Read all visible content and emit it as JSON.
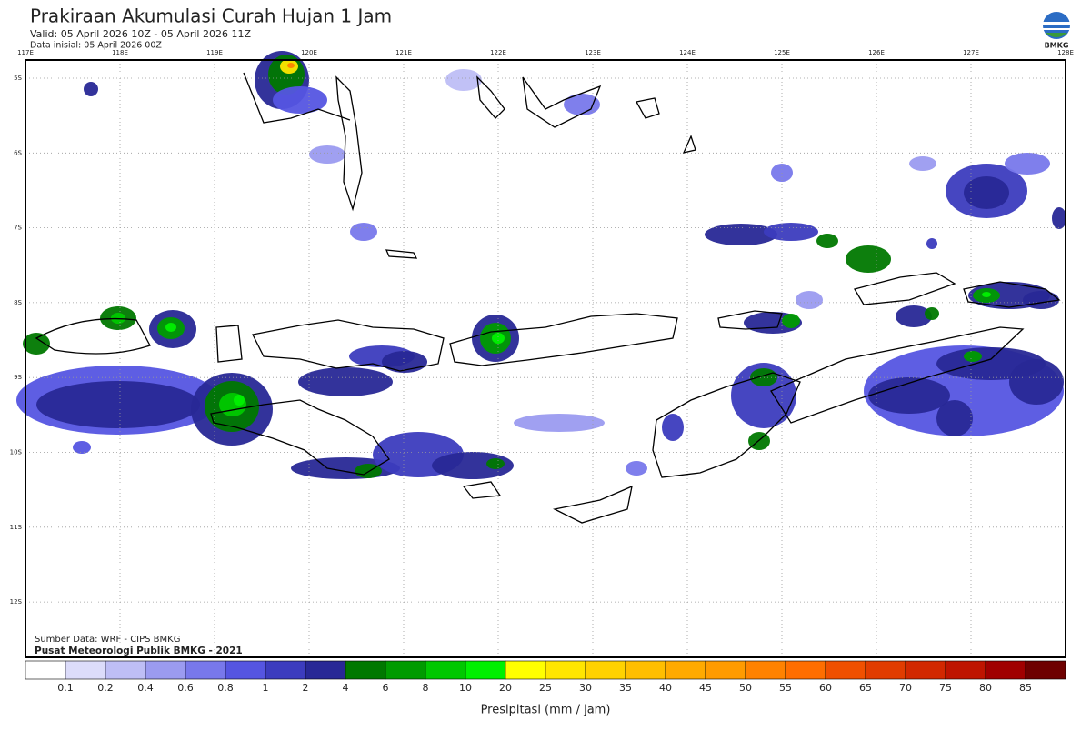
{
  "header": {
    "title": "Prakiraan Akumulasi Curah Hujan 1 Jam",
    "valid": "Valid: 05 April 2026 10Z - 05 April 2026 11Z",
    "initial": "Data inisial: 05 April 2026 00Z",
    "logo": "BMKG"
  },
  "map": {
    "x_labels": [
      "117E",
      "118E",
      "119E",
      "120E",
      "121E",
      "122E",
      "123E",
      "124E",
      "125E",
      "126E",
      "127E",
      "128E"
    ],
    "y_labels": [
      "5S",
      "6S",
      "7S",
      "8S",
      "9S",
      "10S",
      "11S",
      "12S"
    ],
    "source": "Sumber Data: WRF - CIPS BMKG",
    "credit": "Pusat Meteorologi Publik BMKG - 2021"
  },
  "colorbar": {
    "labels": [
      0.1,
      0.2,
      0.4,
      0.6,
      0.8,
      1,
      2,
      4,
      6,
      8,
      10,
      20,
      25,
      30,
      35,
      40,
      45,
      50,
      55,
      60,
      65,
      70,
      75,
      80,
      85
    ],
    "colors": [
      "#ffffff",
      "#dcdcfa",
      "#bebef5",
      "#9b9bf0",
      "#7878eb",
      "#5555e1",
      "#3c3cbe",
      "#282896",
      "#007800",
      "#009b00",
      "#00c800",
      "#00f000",
      "#ffff00",
      "#ffe600",
      "#ffd200",
      "#ffbe00",
      "#ffaa00",
      "#ff9b00",
      "#ff8200",
      "#ff6e00",
      "#f05000",
      "#e13c00",
      "#d22800",
      "#be1400",
      "#a00000",
      "#6e0000",
      "#3c0000"
    ],
    "title": "Presipitasi (mm / jam)"
  }
}
